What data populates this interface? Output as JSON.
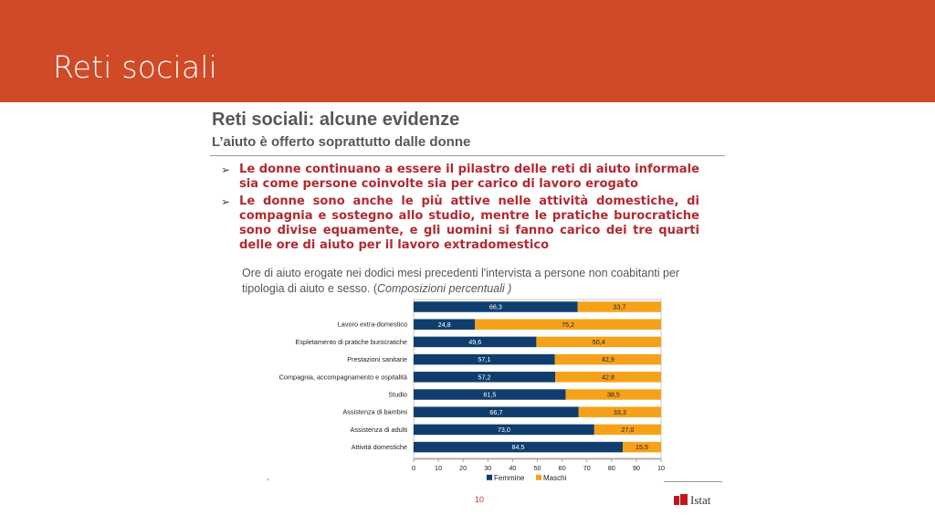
{
  "header": {
    "title": "Reti sociali"
  },
  "slide": {
    "heading": "Reti sociali: alcune evidenze",
    "subheading": "L’aiuto è offerto soprattutto dalle donne",
    "bullets": [
      {
        "icon": "arrowhead-bullet-icon",
        "text": "Le donne continuano a essere il pilastro delle reti di aiuto informale sia come persone coinvolte sia per carico di lavoro erogato"
      },
      {
        "icon": "arrowhead-bullet-icon",
        "text": "Le donne sono anche le più attive nelle attività domestiche, di compagnia e sostegno allo studio, mentre le pratiche burocratiche sono divise equamente, e gli uomini si fanno carico dei tre quarti delle ore di aiuto per il lavoro extradomestico"
      }
    ],
    "caption_text": "Ore di aiuto erogate nei dodici mesi precedenti l'intervista a persone non coabitanti per tipologia di aiuto e sesso. (",
    "caption_italic": "Composizioni percentuali )",
    "dash": "-"
  },
  "footer": {
    "page_number": "10",
    "logo_text": "Istat"
  },
  "colors": {
    "header": "#d04a27",
    "femmine": "#0f3e6e",
    "maschi": "#f5a21a",
    "bullet_text": "#b12a30"
  },
  "chart_data": {
    "type": "bar",
    "orientation": "horizontal",
    "stacked": true,
    "categories": [
      "",
      "Lavoro extra-domestico",
      "Espletamento di pratiche burocratiche",
      "Prestazioni sanitarie",
      "Compagnia, accompagnamento e ospitalità",
      "Studio",
      "Assistenza di bambini",
      "Assistenza di adulti",
      "Attività domestiche"
    ],
    "series": [
      {
        "name": "Femmine",
        "values": [
          66.3,
          24.8,
          49.6,
          57.1,
          57.2,
          61.5,
          66.7,
          73.0,
          84.5
        ],
        "labels": [
          "66,3",
          "24,8",
          "49,6",
          "57,1",
          "57,2",
          "61,5",
          "66,7",
          "73,0",
          "84,5"
        ],
        "color": "#0f3e6e"
      },
      {
        "name": "Maschi",
        "values": [
          33.7,
          75.2,
          50.4,
          42.9,
          42.8,
          38.5,
          33.3,
          27.0,
          15.5
        ],
        "labels": [
          "33,7",
          "75,2",
          "50,4",
          "42,9",
          "42,8",
          "38,5",
          "33,3",
          "27,0",
          "15,5"
        ],
        "color": "#f5a21a"
      }
    ],
    "xlim": [
      0,
      100
    ],
    "x_tick_labels": [
      "0",
      "10",
      "20",
      "30",
      "40",
      "50",
      "60",
      "70",
      "80",
      "90",
      "10"
    ],
    "legend_position": "bottom"
  }
}
